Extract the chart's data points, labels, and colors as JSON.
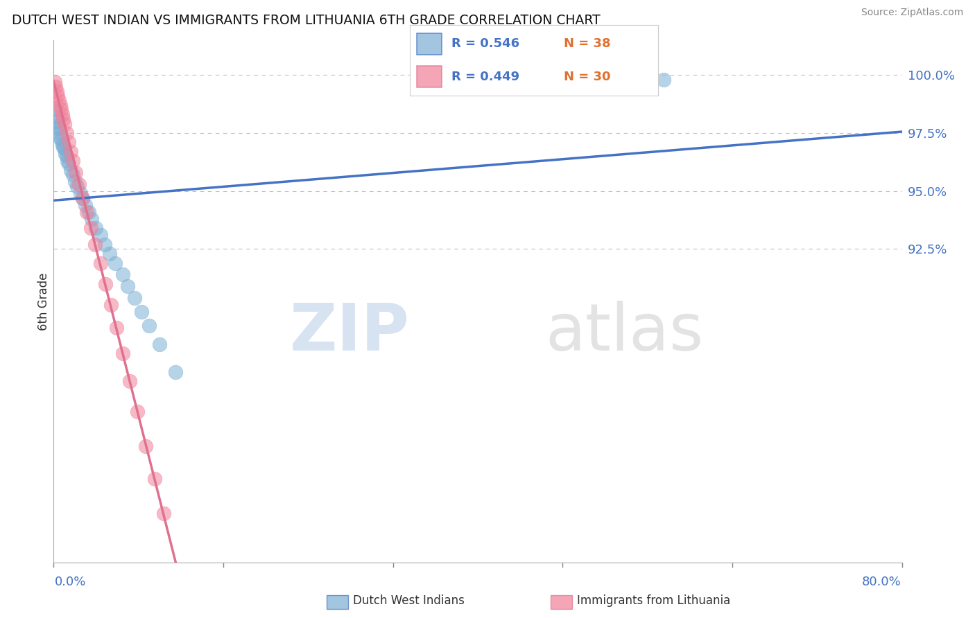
{
  "title": "DUTCH WEST INDIAN VS IMMIGRANTS FROM LITHUANIA 6TH GRADE CORRELATION CHART",
  "source": "Source: ZipAtlas.com",
  "xlabel_label": "0.0%",
  "xright_label": "80.0%",
  "ylabel": "6th Grade",
  "ytick_values": [
    1.0,
    0.975,
    0.95,
    0.925
  ],
  "xlim": [
    0.0,
    0.8
  ],
  "ylim": [
    0.79,
    1.015
  ],
  "blue_scatter_x": [
    0.001,
    0.002,
    0.003,
    0.003,
    0.004,
    0.005,
    0.006,
    0.007,
    0.008,
    0.009,
    0.01,
    0.011,
    0.012,
    0.013,
    0.014,
    0.016,
    0.018,
    0.02,
    0.022,
    0.025,
    0.027,
    0.03,
    0.033,
    0.036,
    0.04,
    0.044,
    0.048,
    0.053,
    0.058,
    0.065,
    0.07,
    0.076,
    0.083,
    0.09,
    0.1,
    0.115,
    0.545,
    0.575
  ],
  "blue_scatter_y": [
    0.985,
    0.982,
    0.98,
    0.978,
    0.977,
    0.975,
    0.973,
    0.972,
    0.97,
    0.969,
    0.968,
    0.966,
    0.965,
    0.963,
    0.962,
    0.959,
    0.957,
    0.954,
    0.952,
    0.949,
    0.947,
    0.944,
    0.941,
    0.938,
    0.934,
    0.931,
    0.927,
    0.923,
    0.919,
    0.914,
    0.909,
    0.904,
    0.898,
    0.892,
    0.884,
    0.872,
    1.0,
    0.998
  ],
  "pink_scatter_x": [
    0.001,
    0.002,
    0.003,
    0.004,
    0.005,
    0.006,
    0.007,
    0.008,
    0.009,
    0.01,
    0.012,
    0.014,
    0.016,
    0.018,
    0.021,
    0.024,
    0.027,
    0.031,
    0.035,
    0.039,
    0.044,
    0.049,
    0.054,
    0.059,
    0.065,
    0.072,
    0.079,
    0.087,
    0.095,
    0.104
  ],
  "pink_scatter_y": [
    0.997,
    0.995,
    0.993,
    0.991,
    0.989,
    0.987,
    0.985,
    0.983,
    0.981,
    0.979,
    0.975,
    0.971,
    0.967,
    0.963,
    0.958,
    0.953,
    0.947,
    0.941,
    0.934,
    0.927,
    0.919,
    0.91,
    0.901,
    0.891,
    0.88,
    0.868,
    0.855,
    0.84,
    0.826,
    0.811
  ],
  "blue_color": "#7bafd4",
  "pink_color": "#f08098",
  "blue_line_color": "#4472c4",
  "pink_line_color": "#e07090",
  "watermark_zip": "ZIP",
  "watermark_atlas": "atlas",
  "background_color": "#ffffff",
  "grid_color": "#b0b8c8"
}
